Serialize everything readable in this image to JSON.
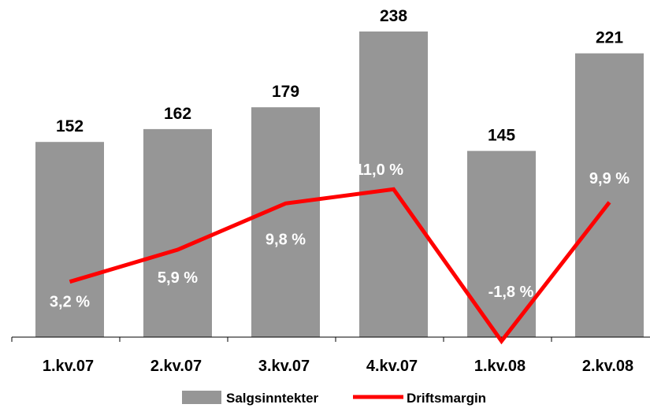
{
  "chart_data": {
    "type": "bar",
    "categories": [
      "1.kv.07",
      "2.kv.07",
      "3.kv.07",
      "4.kv.07",
      "1.kv.08",
      "2.kv.08"
    ],
    "series": [
      {
        "name": "Salgsinntekter",
        "type": "bar",
        "values": [
          152,
          162,
          179,
          238,
          145,
          221
        ],
        "value_labels": [
          "152",
          "162",
          "179",
          "238",
          "145",
          "221"
        ],
        "color": "#969696"
      },
      {
        "name": "Driftsmargin",
        "type": "line",
        "values": [
          3.2,
          5.9,
          9.8,
          11.0,
          -1.8,
          9.9
        ],
        "value_labels": [
          "3,2 %",
          "5,9 %",
          "9,8 %",
          "11,0 %",
          "-1,8 %",
          "9,9 %"
        ],
        "color": "#ff0000"
      }
    ],
    "ylim": [
      0,
      250
    ],
    "y2lim": [
      -1.8,
      15
    ],
    "grid": false,
    "legend_position": "bottom"
  }
}
